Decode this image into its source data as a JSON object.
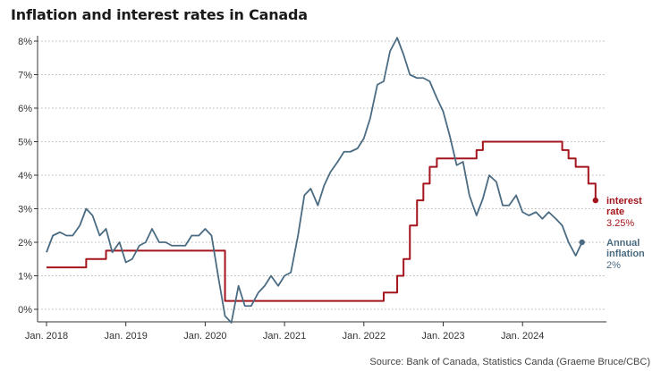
{
  "title": "Inflation and interest rates in Canada",
  "source": "Source: Bank of Canada, Statistics Canda (Graeme Bruce/CBC)",
  "colors": {
    "inflation": "#4a6b82",
    "interest_rate": "#a3141c",
    "grid": "#b5b5b5",
    "axis": "#333333"
  },
  "chart_data": {
    "type": "line",
    "x_unit": "year",
    "xlim": [
      2018.0,
      2025.0
    ],
    "ylim": [
      -0.4,
      8.1
    ],
    "y_ticks": [
      0,
      1,
      2,
      3,
      4,
      5,
      6,
      7,
      8
    ],
    "y_tick_labels": [
      "0%",
      "1%",
      "2%",
      "3%",
      "4%",
      "5%",
      "6%",
      "7%",
      "8%"
    ],
    "x_ticks": [
      2018,
      2019,
      2020,
      2021,
      2022,
      2023,
      2024
    ],
    "x_tick_labels": [
      "Jan. 2018",
      "Jan. 2019",
      "Jan. 2020",
      "Jan. 2021",
      "Jan. 2022",
      "Jan. 2023",
      "Jan. 2024"
    ],
    "grid": "horizontal dotted",
    "series": [
      {
        "key": "interest_rate",
        "label_lines": [
          "interest",
          "rate"
        ],
        "value_label": "3.25%",
        "shape": "step",
        "x": [
          2018.0,
          2018.5,
          2018.75,
          2020.21,
          2020.25,
          2022.17,
          2022.25,
          2022.42,
          2022.5,
          2022.58,
          2022.67,
          2022.75,
          2022.83,
          2022.92,
          2023.0,
          2023.42,
          2023.5,
          2024.42,
          2024.5,
          2024.58,
          2024.67,
          2024.83,
          2024.92
        ],
        "y": [
          1.25,
          1.5,
          1.75,
          1.75,
          0.25,
          0.25,
          0.5,
          1.0,
          1.5,
          2.5,
          3.25,
          3.75,
          4.25,
          4.5,
          4.5,
          4.75,
          5.0,
          5.0,
          4.75,
          4.5,
          4.25,
          3.75,
          3.25
        ]
      },
      {
        "key": "inflation",
        "label_lines": [
          "Annual",
          "inflation"
        ],
        "value_label": "2%",
        "shape": "line",
        "x": [
          2018.0,
          2018.08,
          2018.17,
          2018.25,
          2018.33,
          2018.42,
          2018.5,
          2018.58,
          2018.67,
          2018.75,
          2018.83,
          2018.92,
          2019.0,
          2019.08,
          2019.17,
          2019.25,
          2019.33,
          2019.42,
          2019.5,
          2019.58,
          2019.67,
          2019.75,
          2019.83,
          2019.92,
          2020.0,
          2020.08,
          2020.17,
          2020.25,
          2020.33,
          2020.42,
          2020.5,
          2020.58,
          2020.67,
          2020.75,
          2020.83,
          2020.92,
          2021.0,
          2021.08,
          2021.17,
          2021.25,
          2021.33,
          2021.42,
          2021.5,
          2021.58,
          2021.67,
          2021.75,
          2021.83,
          2021.92,
          2022.0,
          2022.08,
          2022.17,
          2022.25,
          2022.33,
          2022.42,
          2022.5,
          2022.58,
          2022.67,
          2022.75,
          2022.83,
          2022.92,
          2023.0,
          2023.08,
          2023.17,
          2023.25,
          2023.33,
          2023.42,
          2023.5,
          2023.58,
          2023.67,
          2023.75,
          2023.83,
          2023.92,
          2024.0,
          2024.08,
          2024.17,
          2024.25,
          2024.33,
          2024.42,
          2024.5,
          2024.58,
          2024.67,
          2024.75
        ],
        "y": [
          1.7,
          2.2,
          2.3,
          2.2,
          2.2,
          2.5,
          3.0,
          2.8,
          2.2,
          2.4,
          1.7,
          2.0,
          1.4,
          1.5,
          1.9,
          2.0,
          2.4,
          2.0,
          2.0,
          1.9,
          1.9,
          1.9,
          2.2,
          2.2,
          2.4,
          2.2,
          0.9,
          -0.2,
          -0.4,
          0.7,
          0.1,
          0.1,
          0.5,
          0.7,
          1.0,
          0.7,
          1.0,
          1.1,
          2.2,
          3.4,
          3.6,
          3.1,
          3.7,
          4.1,
          4.4,
          4.7,
          4.7,
          4.8,
          5.1,
          5.7,
          6.7,
          6.8,
          7.7,
          8.1,
          7.6,
          7.0,
          6.9,
          6.9,
          6.8,
          6.3,
          5.9,
          5.2,
          4.3,
          4.4,
          3.4,
          2.8,
          3.3,
          4.0,
          3.8,
          3.1,
          3.1,
          3.4,
          2.9,
          2.8,
          2.9,
          2.7,
          2.9,
          2.7,
          2.5,
          2.0,
          1.6,
          2.0
        ]
      }
    ]
  }
}
